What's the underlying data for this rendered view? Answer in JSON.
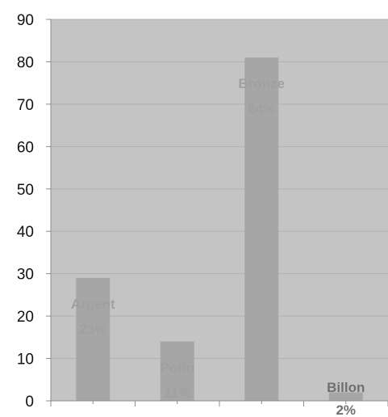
{
  "chart_data": {
    "type": "bar",
    "categories": [
      "Argent",
      "Potin",
      "Bronze",
      "Billon"
    ],
    "values": [
      29,
      14,
      81,
      2
    ],
    "data_labels": [
      {
        "name": "Argent",
        "pct": "23%"
      },
      {
        "name": "Potin",
        "pct": "11%"
      },
      {
        "name": "Bronze",
        "pct": "64%"
      },
      {
        "name": "Billon",
        "pct": "2%"
      }
    ],
    "title": "",
    "xlabel": "",
    "ylabel": "",
    "ylim": [
      0,
      90
    ],
    "yticks": [
      "0",
      "10",
      "20",
      "30",
      "40",
      "50",
      "60",
      "70",
      "80",
      "90"
    ],
    "grid": true,
    "legend": "none",
    "colors": {
      "plot_background": "#c4c4c4",
      "bar": "#a6a6a6",
      "gridline": "#b0b0b0",
      "axis": "#8c8c8c",
      "label_light": "#a0a0a0",
      "label_dark": "#707070"
    }
  }
}
